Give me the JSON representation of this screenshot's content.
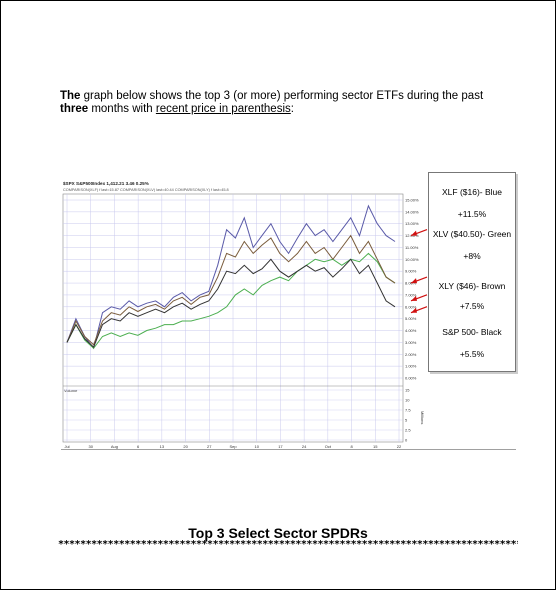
{
  "intro": {
    "bold_start": "The",
    "text_part1": " graph below shows the top 3 (or more) performing sector ETFs during the past ",
    "bold_mid": "three",
    "text_part2": " months with ",
    "underlined": "recent price in parenthesis",
    "text_end": ":"
  },
  "chart_header": {
    "line1": "$SPX S&P500Index  1,412.21  3.46  0.25%",
    "line2": "COMPARISON(XLF) f last=15.87  COMPARISON(XLV) last=40.44  COMPARISON(XLY) f last=45.8"
  },
  "legend": [
    {
      "name": "XLF ($16)- Blue",
      "pct": "+11.5%"
    },
    {
      "name": "XLV ($40.50)- Green",
      "pct": "+8%"
    },
    {
      "name": "XLY ($46)- Brown",
      "pct": "+7.5%"
    },
    {
      "name": "S&P 500- Black",
      "pct": "+5.5%"
    }
  ],
  "colors": {
    "xlf": "#5a5aa8",
    "xlv": "#4caf50",
    "xly": "#7a5c3c",
    "spx": "#333333",
    "grid": "#c8c8ee",
    "arrow": "#d01010"
  },
  "page_title": "Top 3 Select Sector SPDRs",
  "stars": "*****************************************************************************************************",
  "chart_data": {
    "type": "line",
    "title": "",
    "right_axis_ticks": [
      "15.00%",
      "14.00%",
      "13.00%",
      "12.00%",
      "11.00%",
      "10.00%",
      "9.00%",
      "8.00%",
      "7.00%",
      "6.00%",
      "5.00%",
      "4.00%",
      "3.00%",
      "2.00%",
      "1.00%",
      "0.00%"
    ],
    "volume_label": "Volume",
    "volume_ticks": [
      "15",
      "10",
      "7.5",
      "5",
      "2.5",
      "0"
    ],
    "volume_unit": "Millions",
    "x_ticks": [
      "Jul",
      "30",
      "Aug",
      "6",
      "13",
      "20",
      "27",
      "Sep",
      "10",
      "17",
      "24",
      "Oct",
      "8",
      "15",
      "22"
    ],
    "ylim": [
      0,
      15
    ],
    "series": [
      {
        "name": "XLF",
        "values": [
          3.0,
          5.0,
          3.5,
          2.5,
          5.5,
          6.0,
          5.8,
          6.5,
          6.0,
          6.3,
          6.5,
          6.0,
          6.8,
          7.2,
          6.5,
          7.0,
          7.3,
          9.5,
          12.5,
          11.8,
          13.5,
          11.0,
          12.0,
          13.0,
          11.5,
          10.5,
          11.8,
          13.0,
          12.0,
          12.5,
          11.5,
          12.5,
          13.5,
          12.0,
          14.5,
          13.0,
          12.0,
          11.5
        ]
      },
      {
        "name": "XLV",
        "values": [
          3.0,
          4.5,
          3.2,
          2.5,
          3.5,
          3.8,
          3.5,
          3.8,
          3.6,
          4.0,
          4.2,
          4.5,
          4.5,
          4.8,
          4.8,
          5.0,
          5.2,
          5.5,
          6.0,
          7.0,
          7.5,
          7.0,
          7.8,
          8.2,
          8.5,
          8.2,
          9.0,
          9.5,
          10.0,
          9.8,
          10.0,
          9.5,
          10.0,
          9.8,
          10.5,
          9.8,
          8.5,
          8.0
        ]
      },
      {
        "name": "XLY",
        "values": [
          3.0,
          4.8,
          3.5,
          2.8,
          4.8,
          5.5,
          5.3,
          6.0,
          5.6,
          6.0,
          6.2,
          5.8,
          6.5,
          6.8,
          6.2,
          6.8,
          7.0,
          8.5,
          10.5,
          10.2,
          11.5,
          10.5,
          11.2,
          11.8,
          10.5,
          9.8,
          10.5,
          11.5,
          10.5,
          11.0,
          10.0,
          11.0,
          12.0,
          10.5,
          11.5,
          10.0,
          8.5,
          8.0
        ]
      },
      {
        "name": "S&P 500",
        "values": [
          3.0,
          4.5,
          3.3,
          2.6,
          4.5,
          5.0,
          4.8,
          5.5,
          5.2,
          5.5,
          5.8,
          5.5,
          6.0,
          6.3,
          5.8,
          6.2,
          6.5,
          7.5,
          9.0,
          8.8,
          9.5,
          8.8,
          9.2,
          10.0,
          9.0,
          8.5,
          9.0,
          9.5,
          9.0,
          9.3,
          8.5,
          9.2,
          10.0,
          8.8,
          9.5,
          8.0,
          6.5,
          6.0
        ]
      }
    ]
  }
}
